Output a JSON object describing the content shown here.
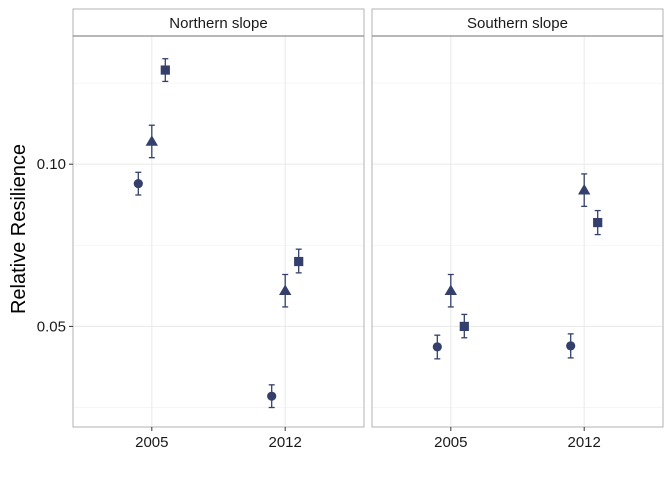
{
  "chart_data": {
    "type": "scatter",
    "ylabel": "Relative Resilience",
    "xlabel": "",
    "ylim": [
      0.019,
      0.1395
    ],
    "yticks": [
      0.05,
      0.1
    ],
    "ytick_labels": [
      "0.05",
      "0.10"
    ],
    "x_categories": [
      "2005",
      "2012"
    ],
    "grid": true,
    "legend": "none",
    "point_color": "#34406b",
    "panels": [
      {
        "title": "Northern slope",
        "points": [
          {
            "x": "2005",
            "offset": -1,
            "shape": "circle",
            "value": 0.094,
            "low": 0.0905,
            "high": 0.0975
          },
          {
            "x": "2005",
            "offset": 0,
            "shape": "triangle",
            "value": 0.107,
            "low": 0.102,
            "high": 0.112
          },
          {
            "x": "2005",
            "offset": 1,
            "shape": "square",
            "value": 0.129,
            "low": 0.1255,
            "high": 0.1325
          },
          {
            "x": "2012",
            "offset": -1,
            "shape": "circle",
            "value": 0.0285,
            "low": 0.025,
            "high": 0.032
          },
          {
            "x": "2012",
            "offset": 0,
            "shape": "triangle",
            "value": 0.061,
            "low": 0.056,
            "high": 0.066
          },
          {
            "x": "2012",
            "offset": 1,
            "shape": "square",
            "value": 0.07,
            "low": 0.0665,
            "high": 0.0738
          }
        ]
      },
      {
        "title": "Southern slope",
        "points": [
          {
            "x": "2005",
            "offset": -1,
            "shape": "circle",
            "value": 0.0437,
            "low": 0.04,
            "high": 0.0473
          },
          {
            "x": "2005",
            "offset": 0,
            "shape": "triangle",
            "value": 0.061,
            "low": 0.056,
            "high": 0.066
          },
          {
            "x": "2005",
            "offset": 1,
            "shape": "square",
            "value": 0.05,
            "low": 0.0465,
            "high": 0.0537
          },
          {
            "x": "2012",
            "offset": -1,
            "shape": "circle",
            "value": 0.044,
            "low": 0.0403,
            "high": 0.0477
          },
          {
            "x": "2012",
            "offset": 0,
            "shape": "triangle",
            "value": 0.092,
            "low": 0.087,
            "high": 0.097
          },
          {
            "x": "2012",
            "offset": 1,
            "shape": "square",
            "value": 0.082,
            "low": 0.0783,
            "high": 0.0857
          }
        ]
      }
    ]
  }
}
